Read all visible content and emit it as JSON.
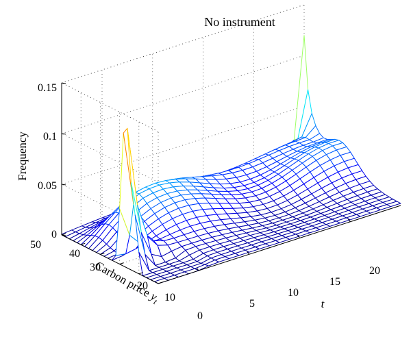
{
  "chart_data": {
    "type": "surface-mesh",
    "title": "No instrument",
    "zlabel": "Frequency",
    "ylabel_main": "Carbon price ",
    "ylabel_var": "y",
    "ylabel_sub": "t",
    "xlabel": "t",
    "x_range": [
      1,
      25
    ],
    "y_range": [
      0,
      50
    ],
    "z_range": [
      0,
      0.15
    ],
    "x_ticks": [
      "5",
      "10",
      "15",
      "20"
    ],
    "x_tick_values": [
      5,
      10,
      15,
      20
    ],
    "y_ticks": [
      "0",
      "10",
      "20",
      "30",
      "40",
      "50"
    ],
    "y_tick_values": [
      0,
      10,
      20,
      30,
      40,
      50
    ],
    "z_ticks": [
      "0",
      "0.05",
      "0.1",
      "0.15"
    ],
    "z_tick_values": [
      0,
      0.05,
      0.1,
      0.15
    ],
    "grid": true,
    "colormap": "jet",
    "features": {
      "peak": {
        "t": 1,
        "y": 17,
        "frequency": 0.15
      },
      "secondary_peak": {
        "t": 1,
        "y": 12,
        "frequency": 0.052
      },
      "ridge_end": {
        "t": 25,
        "y": 50,
        "frequency": 0.105
      },
      "baseline": 0.002
    }
  }
}
